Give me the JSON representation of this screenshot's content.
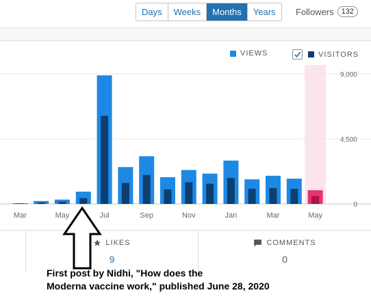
{
  "periods": {
    "items": [
      "Days",
      "Weeks",
      "Months",
      "Years"
    ],
    "active_index": 2
  },
  "followers": {
    "label": "Followers",
    "count": "132"
  },
  "legend": {
    "views_label": "VIEWS",
    "visitors_label": "VISITORS",
    "visitors_checked": true,
    "views_color": "#1e88e5",
    "visitors_color": "#0d3f6e",
    "highlight_views_color": "#e8336d",
    "highlight_visitors_color": "#a8164b",
    "highlight_band_color": "#fce4ec"
  },
  "chart_data": {
    "type": "bar",
    "categories": [
      "Mar",
      "Apr",
      "May",
      "Jun",
      "Jul",
      "Aug",
      "Sep",
      "Oct",
      "Nov",
      "Dec",
      "Jan",
      "Feb",
      "Mar",
      "Apr",
      "May"
    ],
    "x_tick_labels": [
      "Mar",
      "",
      "May",
      "",
      "Jul",
      "",
      "Sep",
      "",
      "Nov",
      "",
      "Jan",
      "",
      "Mar",
      "",
      "May"
    ],
    "series": [
      {
        "name": "VIEWS",
        "values": [
          50,
          200,
          300,
          850,
          8900,
          2550,
          3300,
          1850,
          2350,
          2100,
          3000,
          1700,
          1950,
          1750,
          950
        ]
      },
      {
        "name": "VISITORS",
        "values": [
          25,
          100,
          150,
          400,
          6100,
          1450,
          2000,
          1000,
          1500,
          1400,
          1800,
          1050,
          1100,
          1050,
          550
        ]
      }
    ],
    "highlight_index": 14,
    "y_ticks": [
      "9,000",
      "4,500",
      "0"
    ],
    "ylim": [
      0,
      9000
    ]
  },
  "tabs": {
    "likes_label": "LIKES",
    "likes_value": "9",
    "comments_label": "COMMENTS",
    "comments_value": "0"
  },
  "annotation": {
    "line1": "First post by Nidhi, \"How does the",
    "line2": "Moderna vaccine work,\" published June 28, 2020"
  }
}
